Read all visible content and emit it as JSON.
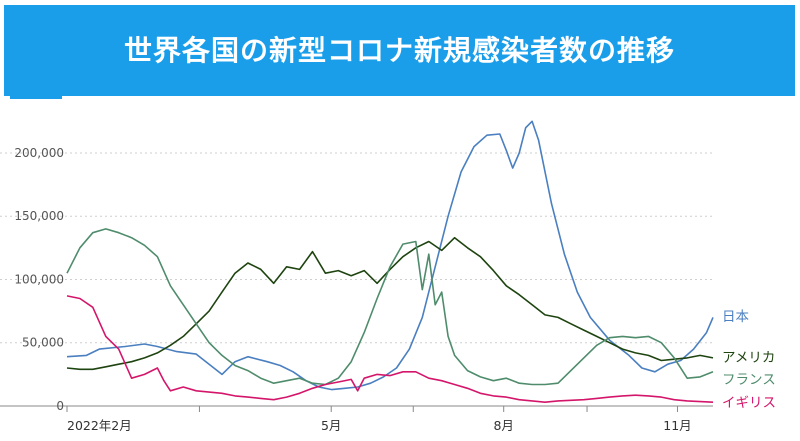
{
  "title": "世界各国の新型コロナ新規感染者数の推移",
  "colors": {
    "banner": "#1a9eea",
    "japan": "#4a7fc0",
    "usa": "#1e4410",
    "france": "#4f8c6c",
    "uk": "#d4166b"
  },
  "chart_data": {
    "type": "line",
    "title": "世界各国の新型コロナ新規感染者数の推移",
    "xlabel": "",
    "ylabel": "",
    "x_range": [
      0,
      100
    ],
    "ylim": [
      0,
      230000
    ],
    "yticks": [
      0,
      50000,
      100000,
      150000,
      200000
    ],
    "ytick_labels": [
      "0",
      "50,000",
      "100,000",
      "150,000",
      "200,000"
    ],
    "xticks": [
      {
        "pos": 0,
        "label": "2022年2月"
      },
      {
        "pos": 20.5,
        "label": ""
      },
      {
        "pos": 40.9,
        "label": "5月"
      },
      {
        "pos": 53.6,
        "label": ""
      },
      {
        "pos": 67.6,
        "label": "8月"
      },
      {
        "pos": 80.5,
        "label": ""
      },
      {
        "pos": 94.5,
        "label": "11月"
      }
    ],
    "grid": true,
    "legend": "inline-right",
    "series": [
      {
        "name": "日本",
        "color": "#4a7fc0",
        "points": [
          [
            0,
            39000
          ],
          [
            3,
            40000
          ],
          [
            5,
            45000
          ],
          [
            9,
            47000
          ],
          [
            12,
            49000
          ],
          [
            14,
            47000
          ],
          [
            17,
            43000
          ],
          [
            20,
            41000
          ],
          [
            22,
            33000
          ],
          [
            24,
            25000
          ],
          [
            26,
            35000
          ],
          [
            28,
            39000
          ],
          [
            31,
            35000
          ],
          [
            33,
            32000
          ],
          [
            35,
            27000
          ],
          [
            37,
            20000
          ],
          [
            39,
            15000
          ],
          [
            41,
            13000
          ],
          [
            43,
            14000
          ],
          [
            45,
            15000
          ],
          [
            47,
            18000
          ],
          [
            49,
            23000
          ],
          [
            51,
            30000
          ],
          [
            53,
            45000
          ],
          [
            55,
            70000
          ],
          [
            57,
            110000
          ],
          [
            59,
            150000
          ],
          [
            61,
            185000
          ],
          [
            63,
            205000
          ],
          [
            65,
            214000
          ],
          [
            67,
            215000
          ],
          [
            68,
            202000
          ],
          [
            69,
            188000
          ],
          [
            70,
            200000
          ],
          [
            71,
            220000
          ],
          [
            72,
            225000
          ],
          [
            73,
            210000
          ],
          [
            75,
            160000
          ],
          [
            77,
            120000
          ],
          [
            79,
            90000
          ],
          [
            81,
            70000
          ],
          [
            84,
            52000
          ],
          [
            87,
            40000
          ],
          [
            89,
            30000
          ],
          [
            91,
            27000
          ],
          [
            93,
            33000
          ],
          [
            95,
            36000
          ],
          [
            97,
            45000
          ],
          [
            99,
            58000
          ],
          [
            100,
            70000
          ]
        ]
      },
      {
        "name": "アメリカ",
        "color": "#1e4410",
        "points": [
          [
            0,
            30000
          ],
          [
            2,
            29000
          ],
          [
            4,
            29000
          ],
          [
            6,
            31000
          ],
          [
            8,
            33000
          ],
          [
            10,
            35000
          ],
          [
            12,
            38000
          ],
          [
            14,
            42000
          ],
          [
            16,
            48000
          ],
          [
            18,
            55000
          ],
          [
            20,
            65000
          ],
          [
            22,
            75000
          ],
          [
            24,
            90000
          ],
          [
            26,
            105000
          ],
          [
            28,
            113000
          ],
          [
            30,
            108000
          ],
          [
            32,
            97000
          ],
          [
            34,
            110000
          ],
          [
            36,
            108000
          ],
          [
            38,
            122000
          ],
          [
            40,
            105000
          ],
          [
            42,
            107000
          ],
          [
            44,
            103000
          ],
          [
            46,
            107000
          ],
          [
            48,
            97000
          ],
          [
            50,
            108000
          ],
          [
            52,
            118000
          ],
          [
            54,
            125000
          ],
          [
            56,
            130000
          ],
          [
            58,
            123000
          ],
          [
            60,
            133000
          ],
          [
            62,
            125000
          ],
          [
            64,
            118000
          ],
          [
            66,
            107000
          ],
          [
            68,
            95000
          ],
          [
            70,
            88000
          ],
          [
            72,
            80000
          ],
          [
            74,
            72000
          ],
          [
            76,
            70000
          ],
          [
            78,
            65000
          ],
          [
            80,
            60000
          ],
          [
            82,
            55000
          ],
          [
            84,
            50000
          ],
          [
            86,
            45000
          ],
          [
            88,
            42000
          ],
          [
            90,
            40000
          ],
          [
            92,
            36000
          ],
          [
            94,
            37000
          ],
          [
            96,
            38000
          ],
          [
            98,
            40000
          ],
          [
            100,
            38000
          ]
        ]
      },
      {
        "name": "フランス",
        "color": "#4f8c6c",
        "points": [
          [
            0,
            105000
          ],
          [
            2,
            125000
          ],
          [
            4,
            137000
          ],
          [
            6,
            140000
          ],
          [
            8,
            137000
          ],
          [
            10,
            133000
          ],
          [
            12,
            127000
          ],
          [
            14,
            118000
          ],
          [
            16,
            95000
          ],
          [
            18,
            80000
          ],
          [
            20,
            65000
          ],
          [
            22,
            50000
          ],
          [
            24,
            40000
          ],
          [
            26,
            32000
          ],
          [
            28,
            28000
          ],
          [
            30,
            22000
          ],
          [
            32,
            18000
          ],
          [
            34,
            20000
          ],
          [
            36,
            22000
          ],
          [
            38,
            18000
          ],
          [
            40,
            17000
          ],
          [
            42,
            22000
          ],
          [
            44,
            35000
          ],
          [
            46,
            58000
          ],
          [
            48,
            85000
          ],
          [
            50,
            110000
          ],
          [
            52,
            128000
          ],
          [
            54,
            130000
          ],
          [
            55,
            92000
          ],
          [
            56,
            120000
          ],
          [
            57,
            80000
          ],
          [
            58,
            90000
          ],
          [
            59,
            55000
          ],
          [
            60,
            40000
          ],
          [
            62,
            28000
          ],
          [
            64,
            23000
          ],
          [
            66,
            20000
          ],
          [
            68,
            22000
          ],
          [
            70,
            18000
          ],
          [
            72,
            17000
          ],
          [
            74,
            17000
          ],
          [
            76,
            18000
          ],
          [
            78,
            28000
          ],
          [
            80,
            38000
          ],
          [
            82,
            48000
          ],
          [
            84,
            54000
          ],
          [
            86,
            55000
          ],
          [
            88,
            54000
          ],
          [
            90,
            55000
          ],
          [
            92,
            50000
          ],
          [
            94,
            38000
          ],
          [
            96,
            22000
          ],
          [
            98,
            23000
          ],
          [
            100,
            27000
          ]
        ]
      },
      {
        "name": "イギリス",
        "color": "#d4166b",
        "points": [
          [
            0,
            87000
          ],
          [
            2,
            85000
          ],
          [
            4,
            78000
          ],
          [
            6,
            55000
          ],
          [
            8,
            45000
          ],
          [
            10,
            22000
          ],
          [
            12,
            25000
          ],
          [
            14,
            30000
          ],
          [
            15,
            20000
          ],
          [
            16,
            12000
          ],
          [
            18,
            15000
          ],
          [
            20,
            12000
          ],
          [
            22,
            11000
          ],
          [
            24,
            10000
          ],
          [
            26,
            8000
          ],
          [
            28,
            7000
          ],
          [
            30,
            6000
          ],
          [
            32,
            5000
          ],
          [
            34,
            7000
          ],
          [
            36,
            10000
          ],
          [
            38,
            14000
          ],
          [
            40,
            17000
          ],
          [
            42,
            19000
          ],
          [
            44,
            21000
          ],
          [
            45,
            12000
          ],
          [
            46,
            22000
          ],
          [
            48,
            25000
          ],
          [
            50,
            24000
          ],
          [
            52,
            27000
          ],
          [
            54,
            27000
          ],
          [
            56,
            22000
          ],
          [
            58,
            20000
          ],
          [
            60,
            17000
          ],
          [
            62,
            14000
          ],
          [
            64,
            10000
          ],
          [
            66,
            8000
          ],
          [
            68,
            7000
          ],
          [
            70,
            5000
          ],
          [
            72,
            4000
          ],
          [
            74,
            3000
          ],
          [
            76,
            4000
          ],
          [
            78,
            4500
          ],
          [
            80,
            5000
          ],
          [
            82,
            6000
          ],
          [
            84,
            7000
          ],
          [
            86,
            8000
          ],
          [
            88,
            8500
          ],
          [
            90,
            8000
          ],
          [
            92,
            7000
          ],
          [
            94,
            5000
          ],
          [
            96,
            4000
          ],
          [
            98,
            3500
          ],
          [
            100,
            3000
          ]
        ]
      }
    ]
  }
}
